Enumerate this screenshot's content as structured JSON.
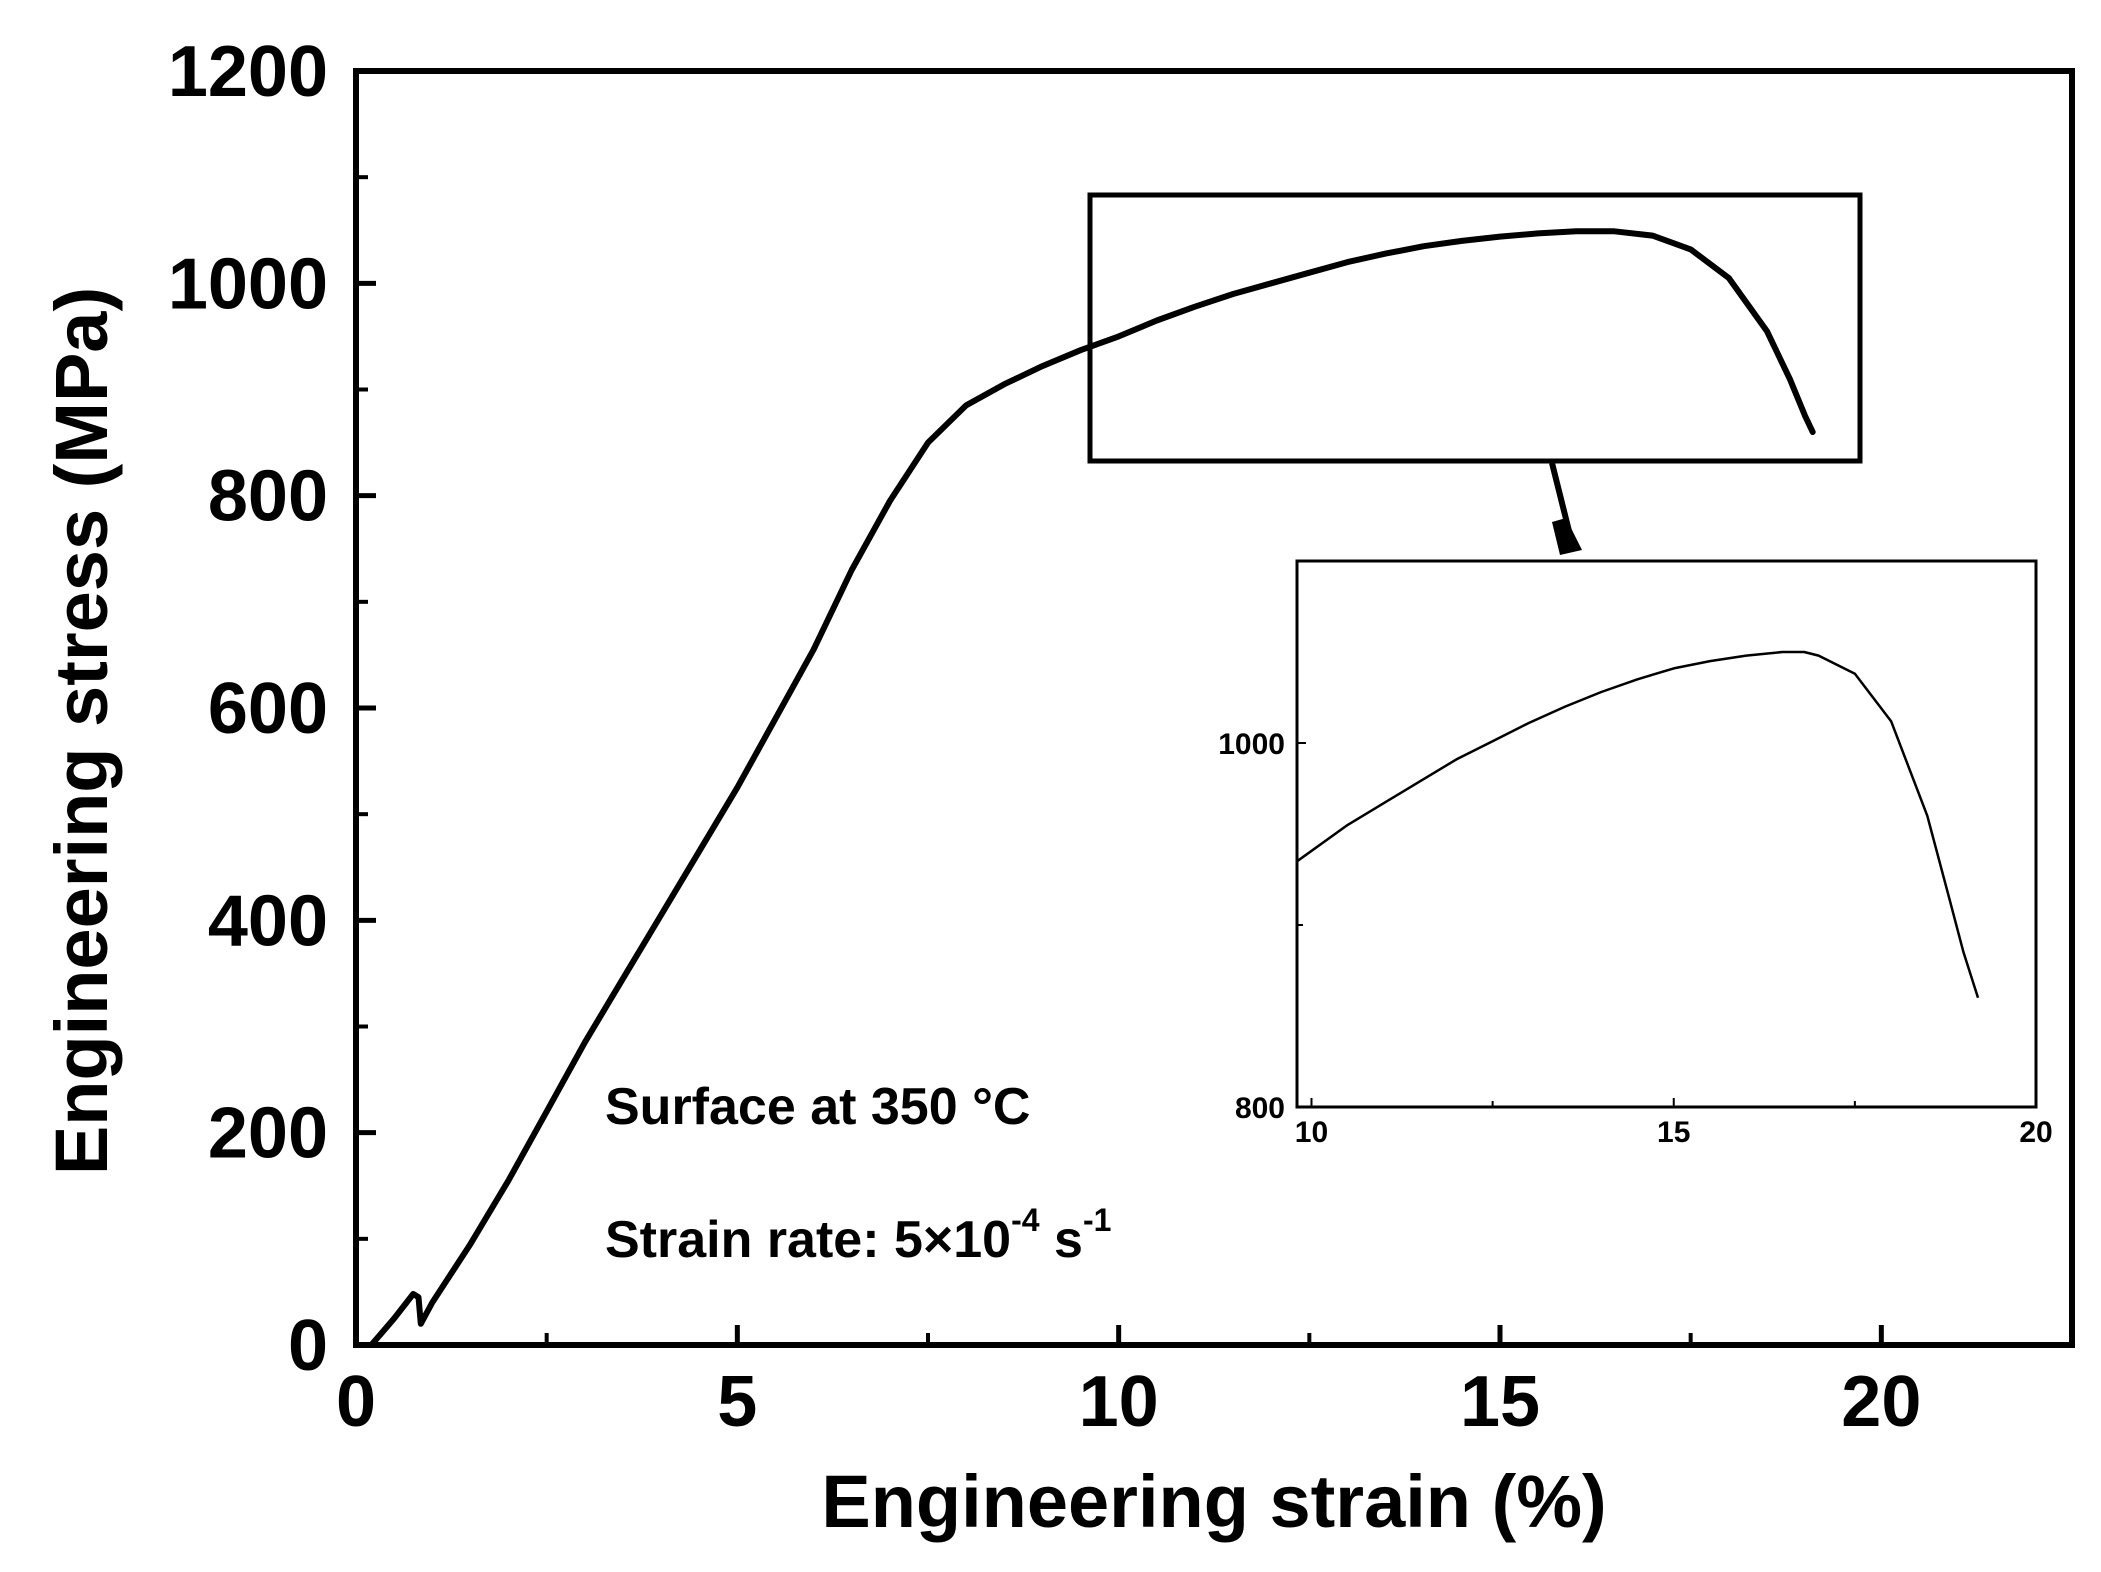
{
  "chart_data": [
    {
      "type": "line",
      "title": "",
      "xlabel": "Engineering strain (%)",
      "ylabel": "Engineering stress (MPa)",
      "xlim": [
        0,
        22.5
      ],
      "ylim": [
        0,
        1200
      ],
      "xticks": [
        0,
        5,
        10,
        15,
        20
      ],
      "yticks": [
        0,
        200,
        400,
        600,
        800,
        1000,
        1200
      ],
      "grid": false,
      "annotations": [
        {
          "text": "Surface at 350 °C"
        },
        {
          "prefix": "Strain rate: 5×10",
          "exp1": "-4",
          "mid": " s",
          "exp2": "-1"
        }
      ],
      "series": [
        {
          "x": [
            0.2,
            0.5,
            0.75,
            0.82,
            0.85,
            1.0,
            1.5,
            2.0,
            2.5,
            3.0,
            3.5,
            4.0,
            4.5,
            5.0,
            5.5,
            6.0,
            6.5,
            7.0,
            7.5,
            8.0,
            8.5,
            9.0,
            9.5,
            10.0,
            10.5,
            11.0,
            11.5,
            12.0,
            12.5,
            13.0,
            13.5,
            14.0,
            14.5,
            15.0,
            15.5,
            16.0,
            16.5,
            17.0,
            17.5,
            18.0,
            18.5,
            18.8,
            19.0,
            19.1
          ],
          "y": [
            0,
            25,
            48,
            45,
            20,
            40,
            95,
            155,
            220,
            285,
            345,
            405,
            465,
            525,
            590,
            655,
            730,
            795,
            850,
            885,
            905,
            922,
            937,
            950,
            965,
            978,
            990,
            1000,
            1010,
            1020,
            1028,
            1035,
            1040,
            1044,
            1047,
            1049,
            1049,
            1045,
            1032,
            1005,
            955,
            910,
            875,
            860
          ]
        }
      ]
    },
    {
      "type": "line",
      "title": "",
      "xlabel": "",
      "ylabel": "",
      "xlim": [
        9.8,
        20
      ],
      "ylim": [
        800,
        1100
      ],
      "xticks": [
        10,
        15,
        20
      ],
      "yticks": [
        800,
        1000
      ],
      "grid": false,
      "series": [
        {
          "x": [
            9.8,
            10.5,
            11.0,
            11.5,
            12.0,
            12.5,
            13.0,
            13.5,
            14.0,
            14.5,
            15.0,
            15.5,
            16.0,
            16.5,
            16.8,
            17.0,
            17.5,
            18.0,
            18.5,
            18.8,
            19.0,
            19.2
          ],
          "y": [
            935,
            955,
            967,
            979,
            991,
            1001,
            1011,
            1020,
            1028,
            1035,
            1041,
            1045,
            1048,
            1050,
            1050,
            1048,
            1038,
            1012,
            960,
            915,
            885,
            860
          ]
        }
      ]
    }
  ]
}
